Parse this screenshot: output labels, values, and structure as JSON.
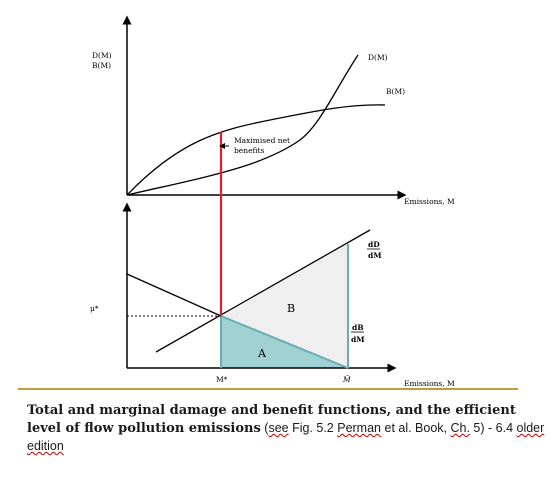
{
  "colors": {
    "axis": "#000000",
    "red_line": "#e0202a",
    "area_a": "#9fd0d2",
    "area_b": "#efefef",
    "teal_line": "#6aaeb5",
    "rule": "#c69a3a"
  },
  "top_panel": {
    "y_axis_label_1": "D(M)",
    "y_axis_label_2": "B(M)",
    "curve_d_label": "D(M)",
    "curve_b_label": "B(M)",
    "annotation_1": "Maximised net",
    "annotation_2": "benefits",
    "x_axis_label": "Emissions, M"
  },
  "bottom_panel": {
    "md_label_top": "dD",
    "md_label_bottom": "dM",
    "mb_label_top": "dB",
    "mb_label_bottom": "dM",
    "region_a": "A",
    "region_b": "B",
    "price_label": "μ*",
    "m_star_label": "M*",
    "m_hat_label": "M̂",
    "x_axis_label": "Emissions, M"
  },
  "caption": {
    "bold_text": "Total and marginal damage and benefit functions, and the efficient  level of flow pollution emissions",
    "normal_open": " (",
    "see": "see",
    "fig": " Fig. 5.2 ",
    "perman": "Perman",
    "et_al": " et al. Book, ",
    "ch": "Ch.",
    "tail": " 5)  - 6.4 ",
    "older": "older edition"
  }
}
